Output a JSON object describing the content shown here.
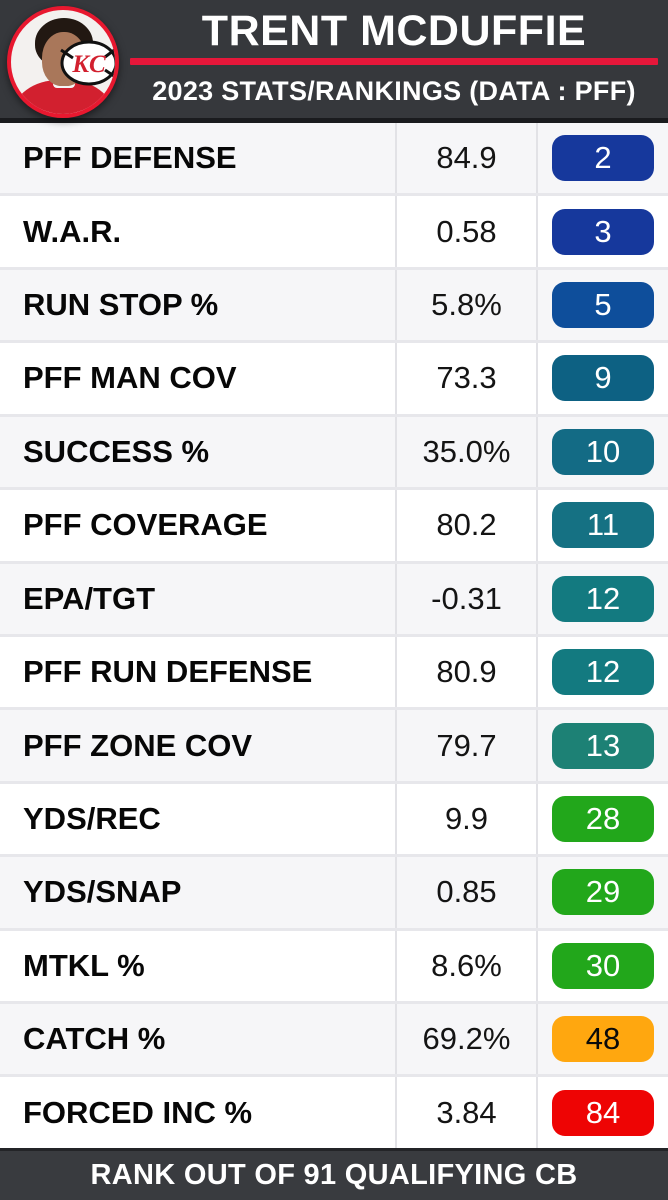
{
  "header": {
    "title": "TRENT MCDUFFIE",
    "subtitle": "2023 STATS/RANKINGS (DATA : PFF)",
    "avatar": {
      "description": "player headshot in red Chiefs jersey inside white circle with red ring",
      "team_logo_text": "KC"
    }
  },
  "footer": {
    "text": "RANK OUT OF 91 QUALIFYING CB"
  },
  "colors": {
    "header_bg": "#36383c",
    "footer_bg": "#393b3f",
    "accent_red_line": "#e6173a",
    "avatar_ring": "#e8182f",
    "row_bg": "#ffffff",
    "row_alt_bg": "#f6f6f8",
    "divider": "#e2e2e6"
  },
  "chart_data": {
    "type": "table",
    "title": "TRENT MCDUFFIE — 2023 STATS/RANKINGS (DATA : PFF)",
    "columns": [
      "stat",
      "value",
      "rank"
    ],
    "rank_context": "RANK OUT OF 91 QUALIFYING CB",
    "rows": [
      {
        "stat": "PFF DEFENSE",
        "value": "84.9",
        "rank": "2",
        "badge_color": "#16389c",
        "badge_text_color": "#ffffff"
      },
      {
        "stat": "W.A.R.",
        "value": "0.58",
        "rank": "3",
        "badge_color": "#16389c",
        "badge_text_color": "#ffffff"
      },
      {
        "stat": "RUN STOP %",
        "value": "5.8%",
        "rank": "5",
        "badge_color": "#0e4e9b",
        "badge_text_color": "#ffffff"
      },
      {
        "stat": "PFF MAN COV",
        "value": "73.3",
        "rank": "9",
        "badge_color": "#0d6183",
        "badge_text_color": "#ffffff"
      },
      {
        "stat": "SUCCESS %",
        "value": "35.0%",
        "rank": "10",
        "badge_color": "#136b85",
        "badge_text_color": "#ffffff"
      },
      {
        "stat": "PFF COVERAGE",
        "value": "80.2",
        "rank": "11",
        "badge_color": "#157183",
        "badge_text_color": "#ffffff"
      },
      {
        "stat": "EPA/TGT",
        "value": "-0.31",
        "rank": "12",
        "badge_color": "#137a80",
        "badge_text_color": "#ffffff"
      },
      {
        "stat": "PFF RUN DEFENSE",
        "value": "80.9",
        "rank": "12",
        "badge_color": "#137a80",
        "badge_text_color": "#ffffff"
      },
      {
        "stat": "PFF ZONE COV",
        "value": "79.7",
        "rank": "13",
        "badge_color": "#1d8175",
        "badge_text_color": "#ffffff"
      },
      {
        "stat": "YDS/REC",
        "value": "9.9",
        "rank": "28",
        "badge_color": "#22a71b",
        "badge_text_color": "#ffffff"
      },
      {
        "stat": "YDS/SNAP",
        "value": "0.85",
        "rank": "29",
        "badge_color": "#22a71b",
        "badge_text_color": "#ffffff"
      },
      {
        "stat": "MTKL %",
        "value": "8.6%",
        "rank": "30",
        "badge_color": "#22a71b",
        "badge_text_color": "#ffffff"
      },
      {
        "stat": "CATCH %",
        "value": "69.2%",
        "rank": "48",
        "badge_color": "#ffa70f",
        "badge_text_color": "#0a0a0a"
      },
      {
        "stat": "FORCED INC %",
        "value": "3.84",
        "rank": "84",
        "badge_color": "#ee0404",
        "badge_text_color": "#ffffff"
      }
    ]
  }
}
